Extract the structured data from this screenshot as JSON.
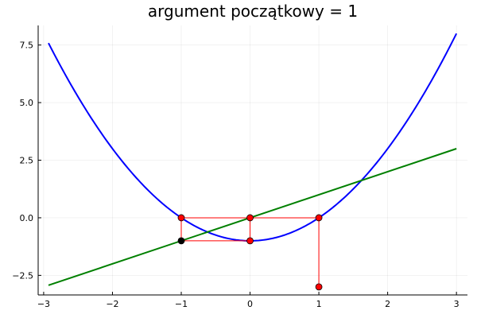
{
  "chart_data": {
    "type": "line",
    "title": "argument początkowy = 1",
    "xlabel": "",
    "ylabel": "",
    "xlim": [
      -3.08,
      3.16
    ],
    "ylim": [
      -3.35,
      8.35
    ],
    "xticks": [
      -3,
      -2,
      -1,
      0,
      1,
      2,
      3
    ],
    "xtick_labels": [
      "−3",
      "−2",
      "−1",
      "0",
      "1",
      "2",
      "3"
    ],
    "yticks": [
      -2.5,
      0,
      2.5,
      5,
      7.5
    ],
    "ytick_labels": [
      "−2.5",
      "0.0",
      "2.5",
      "5.0",
      "7.5"
    ],
    "grid": true,
    "legend": "none",
    "series": [
      {
        "color": "#0000ff",
        "style": "line",
        "function": "x^2 - 1",
        "x": [
          -2.93,
          -2.75,
          -2.5,
          -2.25,
          -2,
          -1.75,
          -1.5,
          -1.25,
          -1,
          -0.75,
          -0.5,
          -0.25,
          0,
          0.25,
          0.5,
          0.75,
          1,
          1.25,
          1.5,
          1.75,
          2,
          2.25,
          2.5,
          2.75,
          3
        ],
        "y": [
          7.58,
          6.56,
          5.25,
          4.06,
          3.0,
          2.06,
          1.25,
          0.56,
          0.0,
          -0.44,
          -0.75,
          -0.94,
          -1.0,
          -0.94,
          -0.75,
          -0.44,
          0.0,
          0.56,
          1.25,
          2.06,
          3.0,
          4.06,
          5.25,
          6.56,
          8.0
        ]
      },
      {
        "color": "#008000",
        "style": "line",
        "function": "y = x",
        "x": [
          -2.93,
          3
        ],
        "y": [
          -2.93,
          3
        ]
      },
      {
        "color": "#ff0000",
        "style": "line-markers",
        "x": [
          1,
          1,
          0,
          0,
          -1,
          -1,
          0,
          0,
          -1,
          -1,
          0,
          0,
          -1
        ],
        "y": [
          -3,
          0,
          0,
          -1,
          -1,
          0,
          0,
          -1,
          -1,
          0,
          0,
          -1,
          -1
        ]
      }
    ],
    "points": [
      {
        "x": 1,
        "y": -3,
        "color": "#ff0000"
      },
      {
        "x": 1,
        "y": 0,
        "color": "#ff0000"
      },
      {
        "x": 0,
        "y": 0,
        "color": "#ff0000"
      },
      {
        "x": 0,
        "y": -1,
        "color": "#ff0000"
      },
      {
        "x": -1,
        "y": -1,
        "color": "#000000"
      },
      {
        "x": -1,
        "y": 0,
        "color": "#ff0000"
      }
    ]
  }
}
